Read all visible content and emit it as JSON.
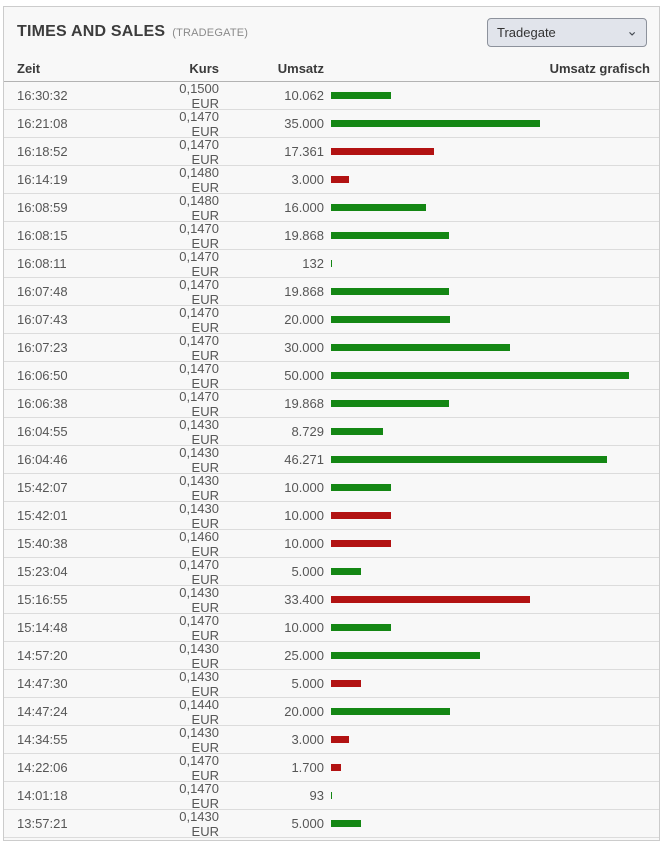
{
  "header": {
    "title": "TIMES AND SALES",
    "subtitle": "(TRADEGATE)",
    "exchange_select": {
      "value": "Tradegate",
      "chevron_icon": "⌄"
    }
  },
  "table": {
    "columns": [
      "Zeit",
      "Kurs",
      "Umsatz",
      "Umsatz grafisch"
    ],
    "bar_scale_max": 50000,
    "rows": [
      {
        "zeit": "16:30:32",
        "kurs": "0,1500 EUR",
        "umsatz": "10.062",
        "value": 10062,
        "direction": "up"
      },
      {
        "zeit": "16:21:08",
        "kurs": "0,1470 EUR",
        "umsatz": "35.000",
        "value": 35000,
        "direction": "up"
      },
      {
        "zeit": "16:18:52",
        "kurs": "0,1470 EUR",
        "umsatz": "17.361",
        "value": 17361,
        "direction": "down"
      },
      {
        "zeit": "16:14:19",
        "kurs": "0,1480 EUR",
        "umsatz": "3.000",
        "value": 3000,
        "direction": "down"
      },
      {
        "zeit": "16:08:59",
        "kurs": "0,1480 EUR",
        "umsatz": "16.000",
        "value": 16000,
        "direction": "up"
      },
      {
        "zeit": "16:08:15",
        "kurs": "0,1470 EUR",
        "umsatz": "19.868",
        "value": 19868,
        "direction": "up"
      },
      {
        "zeit": "16:08:11",
        "kurs": "0,1470 EUR",
        "umsatz": "132",
        "value": 132,
        "direction": "up"
      },
      {
        "zeit": "16:07:48",
        "kurs": "0,1470 EUR",
        "umsatz": "19.868",
        "value": 19868,
        "direction": "up"
      },
      {
        "zeit": "16:07:43",
        "kurs": "0,1470 EUR",
        "umsatz": "20.000",
        "value": 20000,
        "direction": "up"
      },
      {
        "zeit": "16:07:23",
        "kurs": "0,1470 EUR",
        "umsatz": "30.000",
        "value": 30000,
        "direction": "up"
      },
      {
        "zeit": "16:06:50",
        "kurs": "0,1470 EUR",
        "umsatz": "50.000",
        "value": 50000,
        "direction": "up"
      },
      {
        "zeit": "16:06:38",
        "kurs": "0,1470 EUR",
        "umsatz": "19.868",
        "value": 19868,
        "direction": "up"
      },
      {
        "zeit": "16:04:55",
        "kurs": "0,1430 EUR",
        "umsatz": "8.729",
        "value": 8729,
        "direction": "up"
      },
      {
        "zeit": "16:04:46",
        "kurs": "0,1430 EUR",
        "umsatz": "46.271",
        "value": 46271,
        "direction": "up"
      },
      {
        "zeit": "15:42:07",
        "kurs": "0,1430 EUR",
        "umsatz": "10.000",
        "value": 10000,
        "direction": "up"
      },
      {
        "zeit": "15:42:01",
        "kurs": "0,1430 EUR",
        "umsatz": "10.000",
        "value": 10000,
        "direction": "down"
      },
      {
        "zeit": "15:40:38",
        "kurs": "0,1460 EUR",
        "umsatz": "10.000",
        "value": 10000,
        "direction": "down"
      },
      {
        "zeit": "15:23:04",
        "kurs": "0,1470 EUR",
        "umsatz": "5.000",
        "value": 5000,
        "direction": "up"
      },
      {
        "zeit": "15:16:55",
        "kurs": "0,1430 EUR",
        "umsatz": "33.400",
        "value": 33400,
        "direction": "down"
      },
      {
        "zeit": "15:14:48",
        "kurs": "0,1470 EUR",
        "umsatz": "10.000",
        "value": 10000,
        "direction": "up"
      },
      {
        "zeit": "14:57:20",
        "kurs": "0,1430 EUR",
        "umsatz": "25.000",
        "value": 25000,
        "direction": "up"
      },
      {
        "zeit": "14:47:30",
        "kurs": "0,1430 EUR",
        "umsatz": "5.000",
        "value": 5000,
        "direction": "down"
      },
      {
        "zeit": "14:47:24",
        "kurs": "0,1440 EUR",
        "umsatz": "20.000",
        "value": 20000,
        "direction": "up"
      },
      {
        "zeit": "14:34:55",
        "kurs": "0,1430 EUR",
        "umsatz": "3.000",
        "value": 3000,
        "direction": "down"
      },
      {
        "zeit": "14:22:06",
        "kurs": "0,1470 EUR",
        "umsatz": "1.700",
        "value": 1700,
        "direction": "down"
      },
      {
        "zeit": "14:01:18",
        "kurs": "0,1470 EUR",
        "umsatz": "93",
        "value": 93,
        "direction": "up"
      },
      {
        "zeit": "13:57:21",
        "kurs": "0,1430 EUR",
        "umsatz": "5.000",
        "value": 5000,
        "direction": "up"
      }
    ]
  },
  "colors": {
    "up": "#148714",
    "down": "#b21212"
  }
}
